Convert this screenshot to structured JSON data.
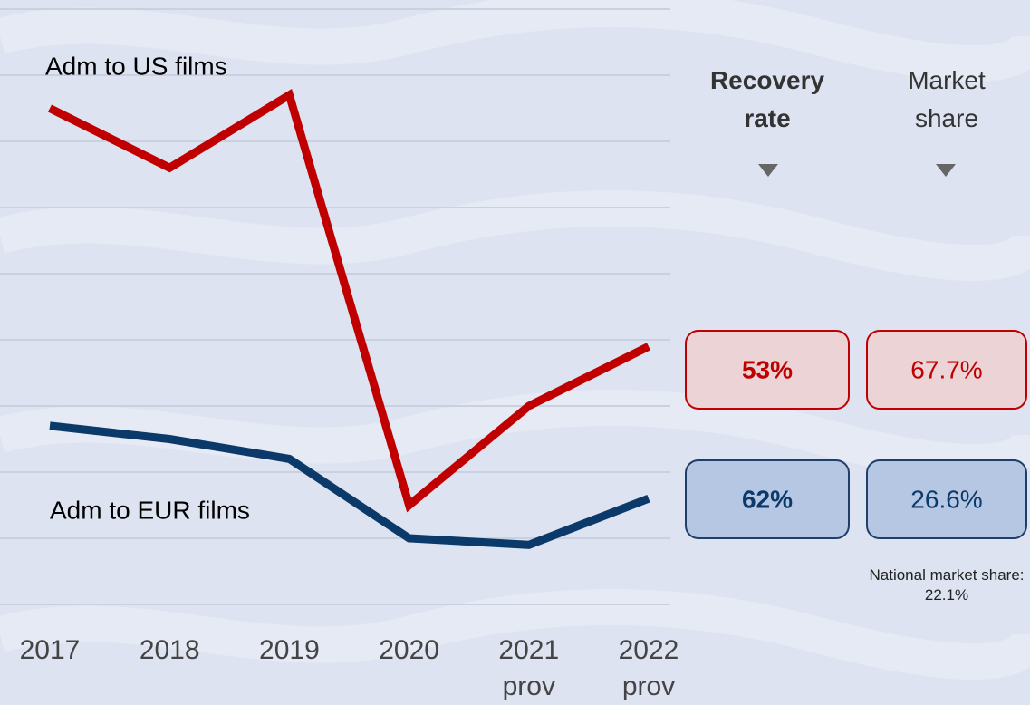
{
  "chart_data": {
    "type": "line",
    "categories": [
      "2017",
      "2018",
      "2019",
      "2020",
      "2021 prov",
      "2022 prov"
    ],
    "series": [
      {
        "name": "Adm to US films",
        "color": "#c00000",
        "values": [
          7.5,
          6.6,
          7.7,
          1.5,
          3.0,
          3.9
        ]
      },
      {
        "name": "Adm to EUR films",
        "color": "#0b3a6a",
        "values": [
          2.7,
          2.5,
          2.2,
          1.0,
          0.9,
          1.6
        ]
      }
    ],
    "ylim": [
      0,
      9
    ],
    "yticks": [
      0,
      1,
      2,
      3,
      4,
      5,
      6,
      7,
      8,
      9
    ],
    "grid": true,
    "table": {
      "headers": [
        "Recovery rate",
        "Market share"
      ],
      "rows": [
        [
          "53%",
          "67.7%"
        ],
        [
          "62%",
          "26.6%"
        ]
      ]
    },
    "note": "National market share: 22.1%"
  }
}
